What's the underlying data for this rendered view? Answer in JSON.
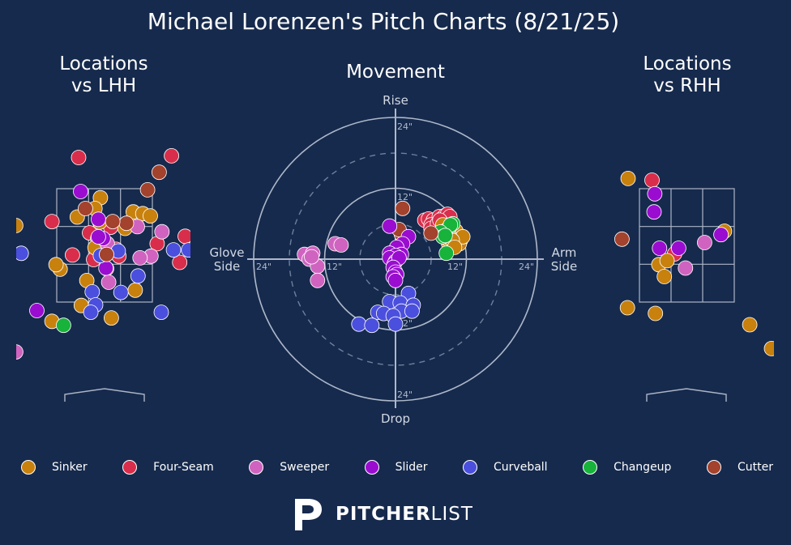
{
  "title": "Michael Lorenzen's Pitch Charts (8/21/25)",
  "panels": {
    "lhh_title": [
      "Locations",
      "vs LHH"
    ],
    "movement_title": "Movement",
    "rhh_title": [
      "Locations",
      "vs RHH"
    ]
  },
  "movement_axes": {
    "top": "Rise",
    "bottom": "Drop",
    "left": [
      "Glove",
      "Side"
    ],
    "right": [
      "Arm",
      "Side"
    ],
    "ring_labels": [
      "12\"",
      "24\""
    ]
  },
  "colors": {
    "background": "#162a4d",
    "Sinker": "#c8810d",
    "Four-Seam": "#d92e4b",
    "Sweeper": "#d063c0",
    "Slider": "#9a0dd0",
    "Curveball": "#4b4fdd",
    "Changeup": "#17b33a",
    "Cutter": "#a3422d"
  },
  "legend": [
    "Sinker",
    "Four-Seam",
    "Sweeper",
    "Slider",
    "Curveball",
    "Changeup",
    "Cutter"
  ],
  "brand": {
    "strong": "PITCHER",
    "light": "LIST",
    "logo_icon": "pitcherlist-logo-icon"
  },
  "chart_data": [
    {
      "type": "scatter",
      "title": "Locations vs LHH",
      "xlabel": "",
      "ylabel": "",
      "series": [
        {
          "name": "Four-Seam",
          "points": [
            [
              -0.38,
              4.05
            ],
            [
              0.98,
              4.08
            ],
            [
              1.85,
              3.57
            ],
            [
              -0.77,
              2.92
            ],
            [
              0.09,
              2.82
            ],
            [
              -0.22,
              2.72
            ],
            [
              1.18,
              2.66
            ],
            [
              0.17,
              2.43
            ],
            [
              1.58,
              2.61
            ],
            [
              0.77,
              2.53
            ],
            [
              0.03,
              2.09
            ],
            [
              -0.47,
              2.33
            ],
            [
              -0.16,
              2.25
            ],
            [
              0.21,
              2.31
            ],
            [
              1.1,
              2.2
            ]
          ]
        },
        {
          "name": "Sinker",
          "points": [
            [
              -0.4,
              3.0
            ],
            [
              -1.3,
              2.85
            ],
            [
              -0.06,
              3.34
            ],
            [
              -0.14,
              3.15
            ],
            [
              0.42,
              3.09
            ],
            [
              -0.07,
              2.91
            ],
            [
              0.56,
              3.06
            ],
            [
              -0.1,
              2.62
            ],
            [
              0.3,
              2.8
            ],
            [
              -0.65,
              2.08
            ],
            [
              -0.26,
              1.88
            ],
            [
              0.67,
              3.02
            ],
            [
              -0.14,
              2.46
            ],
            [
              -0.71,
              2.16
            ],
            [
              0.45,
              1.71
            ],
            [
              -0.34,
              1.44
            ],
            [
              -0.77,
              1.16
            ],
            [
              0.1,
              1.22
            ]
          ]
        },
        {
          "name": "Sweeper",
          "points": [
            [
              -1.3,
              0.62
            ],
            [
              0.04,
              2.53
            ],
            [
              0.68,
              2.31
            ],
            [
              0.48,
              2.83
            ],
            [
              0.52,
              2.28
            ],
            [
              0.06,
              1.85
            ],
            [
              0.84,
              2.74
            ]
          ]
        },
        {
          "name": "Slider",
          "points": [
            [
              -0.35,
              3.45
            ],
            [
              -0.09,
              2.96
            ],
            [
              -1.41,
              2.92
            ],
            [
              -0.02,
              2.62
            ],
            [
              0.02,
              2.1
            ],
            [
              -0.99,
              1.35
            ],
            [
              -0.09,
              2.65
            ]
          ]
        },
        {
          "name": "Curveball",
          "points": [
            [
              0.2,
              2.4
            ],
            [
              1.01,
              2.42
            ],
            [
              -1.22,
              2.36
            ],
            [
              0.49,
              1.96
            ],
            [
              -0.18,
              1.68
            ],
            [
              -0.13,
              1.45
            ],
            [
              -0.2,
              1.32
            ],
            [
              0.83,
              1.32
            ],
            [
              0.24,
              1.67
            ],
            [
              1.23,
              2.42
            ],
            [
              -0.06,
              2.32
            ],
            [
              1.37,
              0.31
            ],
            [
              -1.44,
              0.9
            ]
          ]
        },
        {
          "name": "Changeup",
          "points": [
            [
              1.72,
              2.6
            ],
            [
              1.91,
              2.79
            ],
            [
              1.83,
              1.91
            ],
            [
              -0.6,
              1.09
            ],
            [
              1.45,
              2.66
            ],
            [
              2.4,
              1.82
            ]
          ]
        },
        {
          "name": "Cutter",
          "points": [
            [
              0.8,
              3.79
            ],
            [
              0.63,
              3.48
            ],
            [
              0.32,
              2.89
            ],
            [
              0.03,
              2.34
            ],
            [
              -0.28,
              3.15
            ],
            [
              0.12,
              2.92
            ]
          ]
        }
      ]
    },
    {
      "type": "scatter",
      "title": "Movement",
      "xlabel": "",
      "ylabel": "",
      "series": [
        {
          "name": "Four-Seam",
          "points": [
            [
              4.95,
              6.6
            ],
            [
              5.6,
              6.8
            ],
            [
              6.4,
              6.6
            ],
            [
              7.4,
              7.2
            ],
            [
              7.8,
              6.8
            ],
            [
              8.4,
              7.4
            ],
            [
              8.8,
              7.6
            ],
            [
              9.2,
              7.2
            ],
            [
              6.0,
              5.8
            ],
            [
              6.0,
              5.2
            ],
            [
              7.6,
              5.6
            ],
            [
              7.8,
              6.2
            ],
            [
              7.1,
              6.0
            ],
            [
              7.5,
              6.6
            ]
          ]
        },
        {
          "name": "Sinker",
          "points": [
            [
              8.0,
              5.8
            ],
            [
              9.2,
              5.2
            ],
            [
              8.4,
              4.8
            ],
            [
              9.4,
              4.6
            ],
            [
              10.0,
              4.4
            ],
            [
              10.6,
              4.2
            ],
            [
              9.6,
              3.8
            ],
            [
              10.2,
              3.4
            ],
            [
              11.0,
              3.2
            ],
            [
              10.4,
              2.8
            ],
            [
              9.0,
              2.6
            ],
            [
              9.8,
              2.6
            ],
            [
              10.8,
              2.6
            ],
            [
              8.8,
              3.4
            ],
            [
              9.4,
              3.4
            ],
            [
              10.8,
              3.8
            ],
            [
              10.2,
              4.8
            ],
            [
              11.4,
              3.8
            ],
            [
              9.0,
              4.2
            ],
            [
              9.6,
              3.2
            ],
            [
              10.0,
              2.0
            ]
          ]
        },
        {
          "name": "Changeup",
          "points": [
            [
              9.1,
              5.4
            ],
            [
              9.7,
              6.0
            ],
            [
              8.5,
              4.8
            ],
            [
              9.3,
              5.8
            ],
            [
              7.6,
              4.6
            ],
            [
              8.0,
              3.8
            ],
            [
              8.6,
              1.0
            ],
            [
              8.4,
              4.0
            ]
          ]
        },
        {
          "name": "Cutter",
          "points": [
            [
              1.0,
              4.2
            ],
            [
              1.2,
              8.6
            ],
            [
              0.6,
              5.0
            ],
            [
              6.0,
              4.4
            ]
          ]
        },
        {
          "name": "Sweeper",
          "points": [
            [
              -10.2,
              2.6
            ],
            [
              -9.2,
              2.4
            ],
            [
              -15.4,
              0.8
            ],
            [
              -14.0,
              1.0
            ],
            [
              -14.6,
              0.0
            ],
            [
              -13.2,
              -1.2
            ],
            [
              -13.2,
              -3.6
            ],
            [
              -14.2,
              0.4
            ]
          ]
        },
        {
          "name": "Slider",
          "points": [
            [
              -1.0,
              5.6
            ],
            [
              2.2,
              3.8
            ],
            [
              1.2,
              2.6
            ],
            [
              0.2,
              2.0
            ],
            [
              -1.0,
              1.0
            ],
            [
              1.0,
              0.8
            ],
            [
              0.0,
              0.6
            ],
            [
              -1.0,
              0.2
            ],
            [
              0.0,
              -0.4
            ],
            [
              -0.2,
              -0.8
            ],
            [
              0.6,
              0.2
            ],
            [
              -0.4,
              -1.4
            ],
            [
              0.0,
              -2.2
            ],
            [
              0.2,
              -2.6
            ],
            [
              -0.4,
              -3.0
            ],
            [
              0.0,
              -3.6
            ]
          ]
        },
        {
          "name": "Curveball",
          "points": [
            [
              2.2,
              -5.8
            ],
            [
              -1.0,
              -7.2
            ],
            [
              0.8,
              -7.4
            ],
            [
              3.0,
              -7.8
            ],
            [
              -3.0,
              -9.0
            ],
            [
              -2.0,
              -9.2
            ],
            [
              1.0,
              -8.8
            ],
            [
              -0.4,
              -9.6
            ],
            [
              2.8,
              -8.8
            ],
            [
              -6.2,
              -11.0
            ],
            [
              -4.0,
              -11.2
            ],
            [
              0.0,
              -11.0
            ]
          ]
        }
      ]
    },
    {
      "type": "scatter",
      "title": "Locations vs RHH",
      "xlabel": "",
      "ylabel": "",
      "series": [
        {
          "name": "Four-Seam",
          "points": [
            [
              -0.51,
              3.65
            ],
            [
              -0.18,
              2.35
            ]
          ]
        },
        {
          "name": "Sinker",
          "points": [
            [
              -0.86,
              3.68
            ],
            [
              0.55,
              2.75
            ],
            [
              1.59,
              3.1
            ],
            [
              -0.41,
              2.16
            ],
            [
              -0.33,
              1.95
            ],
            [
              -0.29,
              2.23
            ],
            [
              -0.87,
              1.4
            ],
            [
              -0.46,
              1.3
            ],
            [
              0.92,
              1.1
            ],
            [
              1.24,
              0.68
            ],
            [
              2.32,
              1.44
            ]
          ]
        },
        {
          "name": "Sweeper",
          "points": [
            [
              0.26,
              2.55
            ],
            [
              -0.02,
              2.1
            ]
          ]
        },
        {
          "name": "Slider",
          "points": [
            [
              -0.47,
              3.41
            ],
            [
              -0.48,
              3.09
            ],
            [
              0.5,
              2.69
            ],
            [
              -1.88,
              2.71
            ],
            [
              -1.62,
              2.73
            ],
            [
              -0.12,
              2.45
            ],
            [
              -0.4,
              2.45
            ]
          ]
        },
        {
          "name": "Curveball",
          "points": []
        },
        {
          "name": "Changeup",
          "points": [
            [
              -1.46,
              0.39
            ]
          ]
        },
        {
          "name": "Cutter",
          "points": [
            [
              -0.95,
              2.61
            ]
          ]
        }
      ]
    }
  ]
}
